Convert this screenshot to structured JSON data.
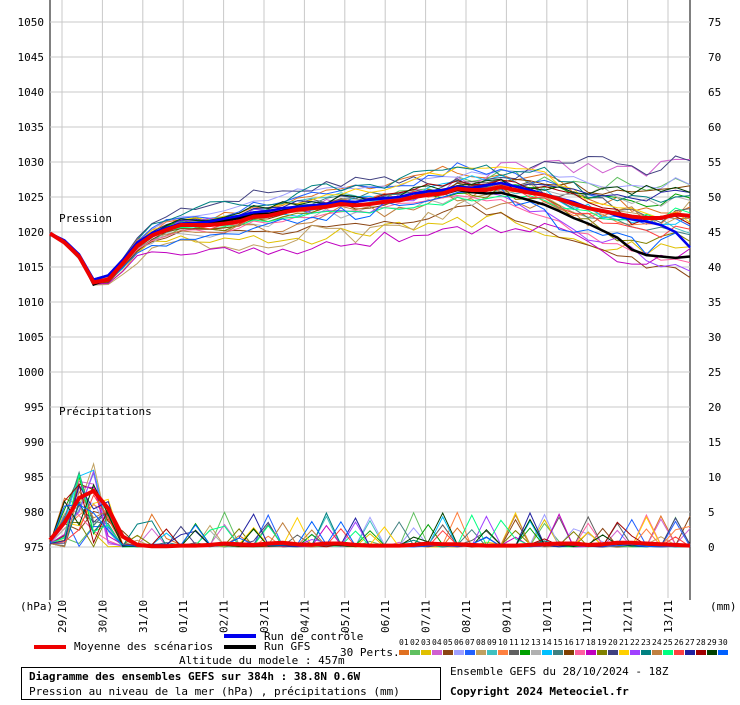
{
  "chart_data": {
    "type": "line",
    "left_axis": {
      "label": "(hPa)",
      "ticks": [
        1050,
        1045,
        1040,
        1035,
        1030,
        1025,
        1020,
        1015,
        1010,
        1005,
        1000,
        995,
        990,
        985,
        980,
        975
      ],
      "range": [
        970,
        1050
      ]
    },
    "right_axis": {
      "label": "(mm)",
      "ticks": [
        75,
        70,
        65,
        60,
        55,
        50,
        45,
        40,
        35,
        30,
        25,
        20,
        15,
        10,
        5,
        0
      ],
      "range": [
        -5,
        75
      ]
    },
    "x_ticks": [
      "29/10",
      "30/10",
      "31/10",
      "01/11",
      "02/11",
      "03/11",
      "04/11",
      "05/11",
      "06/11",
      "07/11",
      "08/11",
      "09/11",
      "10/11",
      "11/11",
      "12/11",
      "13/11"
    ],
    "pressure_label": "Pression",
    "precip_label": "Précipitations",
    "grid": true,
    "series": [
      {
        "name": "Moyenne des scénarios",
        "color": "#ee0000",
        "values": [
          1019.8,
          1018.5,
          1016.5,
          1012.8,
          1013.2,
          1015.5,
          1018,
          1019.5,
          1020.3,
          1021,
          1021,
          1021,
          1021.2,
          1021.5,
          1022.2,
          1022.3,
          1022.8,
          1023.2,
          1023.4,
          1023.6,
          1024,
          1023.8,
          1024,
          1024.3,
          1024.5,
          1025,
          1025.3,
          1025.5,
          1026.2,
          1026,
          1026,
          1026.4,
          1026,
          1025.6,
          1025.3,
          1024.7,
          1024,
          1023.4,
          1023,
          1022.6,
          1022.2,
          1022,
          1022,
          1022.5,
          1022.3
        ]
      },
      {
        "name": "Run de contrôle",
        "color": "#0000ee",
        "values": [
          1019.8,
          1018.8,
          1016.8,
          1013.2,
          1013.8,
          1016,
          1018.5,
          1019.8,
          1020.6,
          1021.2,
          1021.3,
          1021.5,
          1021.9,
          1022.3,
          1022.8,
          1023,
          1023.4,
          1023.6,
          1023.8,
          1024,
          1024.4,
          1024.3,
          1024.6,
          1024.8,
          1025,
          1025.5,
          1025.8,
          1026,
          1026.5,
          1026.3,
          1026.7,
          1027,
          1026.5,
          1026,
          1025.4,
          1024.8,
          1024.3,
          1023.5,
          1023,
          1022.3,
          1021.8,
          1021.5,
          1021,
          1020,
          1017.8
        ]
      },
      {
        "name": "Run GFS",
        "color": "#000000",
        "values": [
          1019.8,
          1018.7,
          1016.7,
          1012.5,
          1013.3,
          1015.8,
          1018.3,
          1019.6,
          1020.4,
          1021,
          1021.1,
          1021.2,
          1021.6,
          1022,
          1022.5,
          1022.6,
          1023,
          1023.3,
          1023.5,
          1023.8,
          1024.2,
          1023.9,
          1024,
          1024.3,
          1024.5,
          1025,
          1025.3,
          1025.4,
          1026,
          1025.7,
          1025.5,
          1025.6,
          1025.1,
          1024.5,
          1023.9,
          1023,
          1022,
          1021.2,
          1020.2,
          1019.2,
          1017.5,
          1016.7,
          1016.5,
          1016.3,
          1016.5
        ]
      }
    ],
    "legend": {
      "mean_label": "Moyenne des scénarios",
      "control_label": "Run de contrôle",
      "gfs_label": "Run GFS",
      "perts_label": "30 Perts."
    }
  },
  "altitude_text": "Altitude du modele : 457m",
  "ensemble_text": "Ensemble GEFS du 28/10/2024 - 18Z",
  "copyright_text": "Copyright 2024 Meteociel.fr",
  "box_title": "Diagramme des ensembles GEFS sur 384h : 38.8N 0.6W",
  "box_subtitle": "Pression au niveau de la mer (hPa) , précipitations (mm)",
  "pert_numbers": [
    "01",
    "02",
    "03",
    "04",
    "05",
    "06",
    "07",
    "08",
    "09",
    "10",
    "11",
    "12",
    "13",
    "14",
    "15",
    "16",
    "17",
    "18",
    "19",
    "20",
    "21",
    "22",
    "23",
    "24",
    "25",
    "26",
    "27",
    "28",
    "29",
    "30"
  ],
  "pert_colors": [
    "#e07020",
    "#60c060",
    "#e0c000",
    "#d060d0",
    "#8b4513",
    "#a0a0ff",
    "#2060ff",
    "#c0a060",
    "#40c0c0",
    "#ff8040",
    "#606060",
    "#00a000",
    "#b0b0b0",
    "#00c0ff",
    "#408080",
    "#804000",
    "#ff60a0",
    "#c000c0",
    "#808000",
    "#404080",
    "#ffd000",
    "#a040ff",
    "#008080",
    "#c08040",
    "#00ff80",
    "#ff4040",
    "#2020a0",
    "#a00000",
    "#004000",
    "#0060ff"
  ]
}
